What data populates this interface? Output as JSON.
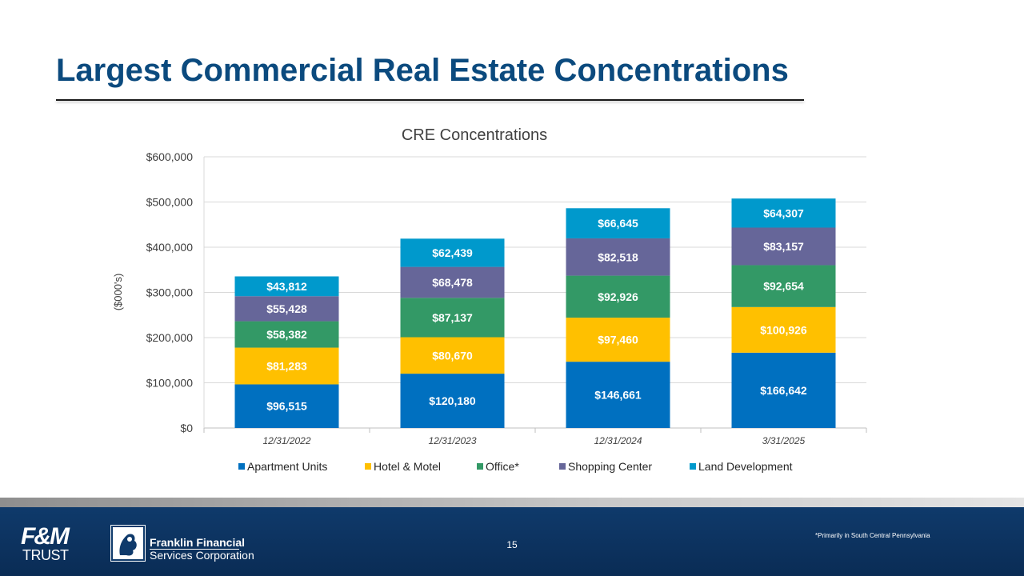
{
  "slide": {
    "title": "Largest Commercial Real Estate Concentrations",
    "page_number": "15",
    "footnote": "*Primarily in South Central Pennsylvania",
    "logos": {
      "fm_line1": "F&M",
      "fm_line2": "TRUST",
      "company_line1": "Franklin Financial",
      "company_line2": "Services Corporation"
    }
  },
  "colors": {
    "title": "#0b4a7e",
    "apartment": "#0070c0",
    "hotel": "#ffc000",
    "office": "#339966",
    "shopping": "#666699",
    "land": "#0099cc"
  },
  "chart_data": {
    "type": "bar",
    "stacked": true,
    "title": "CRE Concentrations",
    "xlabel": "",
    "ylabel": "($000's)",
    "ylim": [
      0,
      600000
    ],
    "yticks": [
      0,
      100000,
      200000,
      300000,
      400000,
      500000,
      600000
    ],
    "ytick_labels": [
      "$0",
      "$100,000",
      "$200,000",
      "$300,000",
      "$400,000",
      "$500,000",
      "$600,000"
    ],
    "categories": [
      "12/31/2022",
      "12/31/2023",
      "12/31/2024",
      "3/31/2025"
    ],
    "legend_position": "bottom",
    "series": [
      {
        "name": "Apartment Units",
        "color": "#0070c0",
        "values": [
          96515,
          120180,
          146661,
          166642
        ],
        "labels": [
          "$96,515",
          "$120,180",
          "$146,661",
          "$166,642"
        ]
      },
      {
        "name": "Hotel & Motel",
        "color": "#ffc000",
        "values": [
          81283,
          80670,
          97460,
          100926
        ],
        "labels": [
          "$81,283",
          "$80,670",
          "$97,460",
          "$100,926"
        ]
      },
      {
        "name": "Office*",
        "color": "#339966",
        "values": [
          58382,
          87137,
          92926,
          92654
        ],
        "labels": [
          "$58,382",
          "$87,137",
          "$92,926",
          "$92,654"
        ]
      },
      {
        "name": "Shopping Center",
        "color": "#666699",
        "values": [
          55428,
          68478,
          82518,
          83157
        ],
        "labels": [
          "$55,428",
          "$68,478",
          "$82,518",
          "$83,157"
        ]
      },
      {
        "name": "Land Development",
        "color": "#0099cc",
        "values": [
          43812,
          62439,
          66645,
          64307
        ],
        "labels": [
          "$43,812",
          "$62,439",
          "$66,645",
          "$64,307"
        ]
      }
    ]
  }
}
